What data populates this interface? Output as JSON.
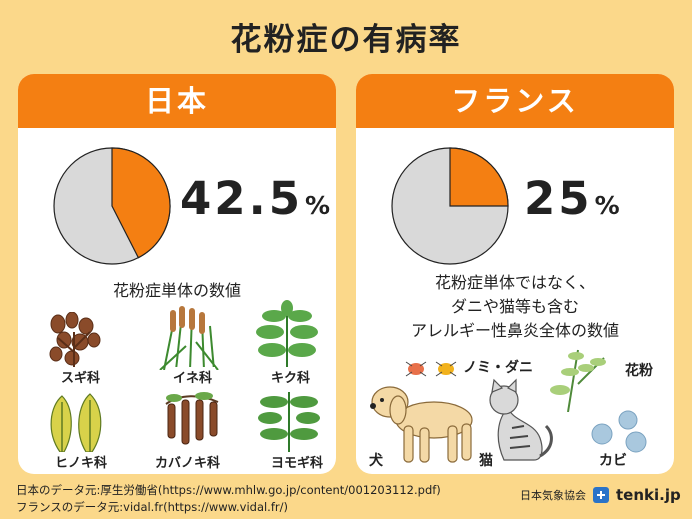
{
  "title": "花粉症の有病率",
  "chart_data": [
    {
      "type": "pie",
      "title": "日本",
      "values": [
        42.5,
        57.5
      ],
      "value_label": "42.5",
      "unit": "%",
      "colors": [
        "#f47f12",
        "#d9d9d9"
      ],
      "description": "花粉症単体の数値"
    },
    {
      "type": "pie",
      "title": "フランス",
      "values": [
        25,
        75
      ],
      "value_label": "25",
      "unit": "%",
      "colors": [
        "#f47f12",
        "#d9d9d9"
      ],
      "description": [
        "花粉症単体ではなく、",
        "ダニや猫等も含む",
        "アレルギー性鼻炎全体の数値"
      ]
    }
  ],
  "japan_plants": [
    "スギ科",
    "イネ科",
    "キク科",
    "ヒノキ科",
    "カバノキ科",
    "ヨモギ科"
  ],
  "france_allergens": [
    "ノミ・ダニ",
    "花粉",
    "犬",
    "猫",
    "カビ"
  ],
  "sources": [
    "日本のデータ元:厚生労働省(https://www.mhlw.go.jp/content/001203112.pdf)",
    "フランスのデータ元:vidal.fr(https://www.vidal.fr/)"
  ],
  "logo": {
    "org": "日本気象協会",
    "site": "tenki.jp"
  },
  "colors": {
    "accent": "#f47f12",
    "background": "#fbd88a",
    "pie_rest": "#d9d9d9"
  }
}
